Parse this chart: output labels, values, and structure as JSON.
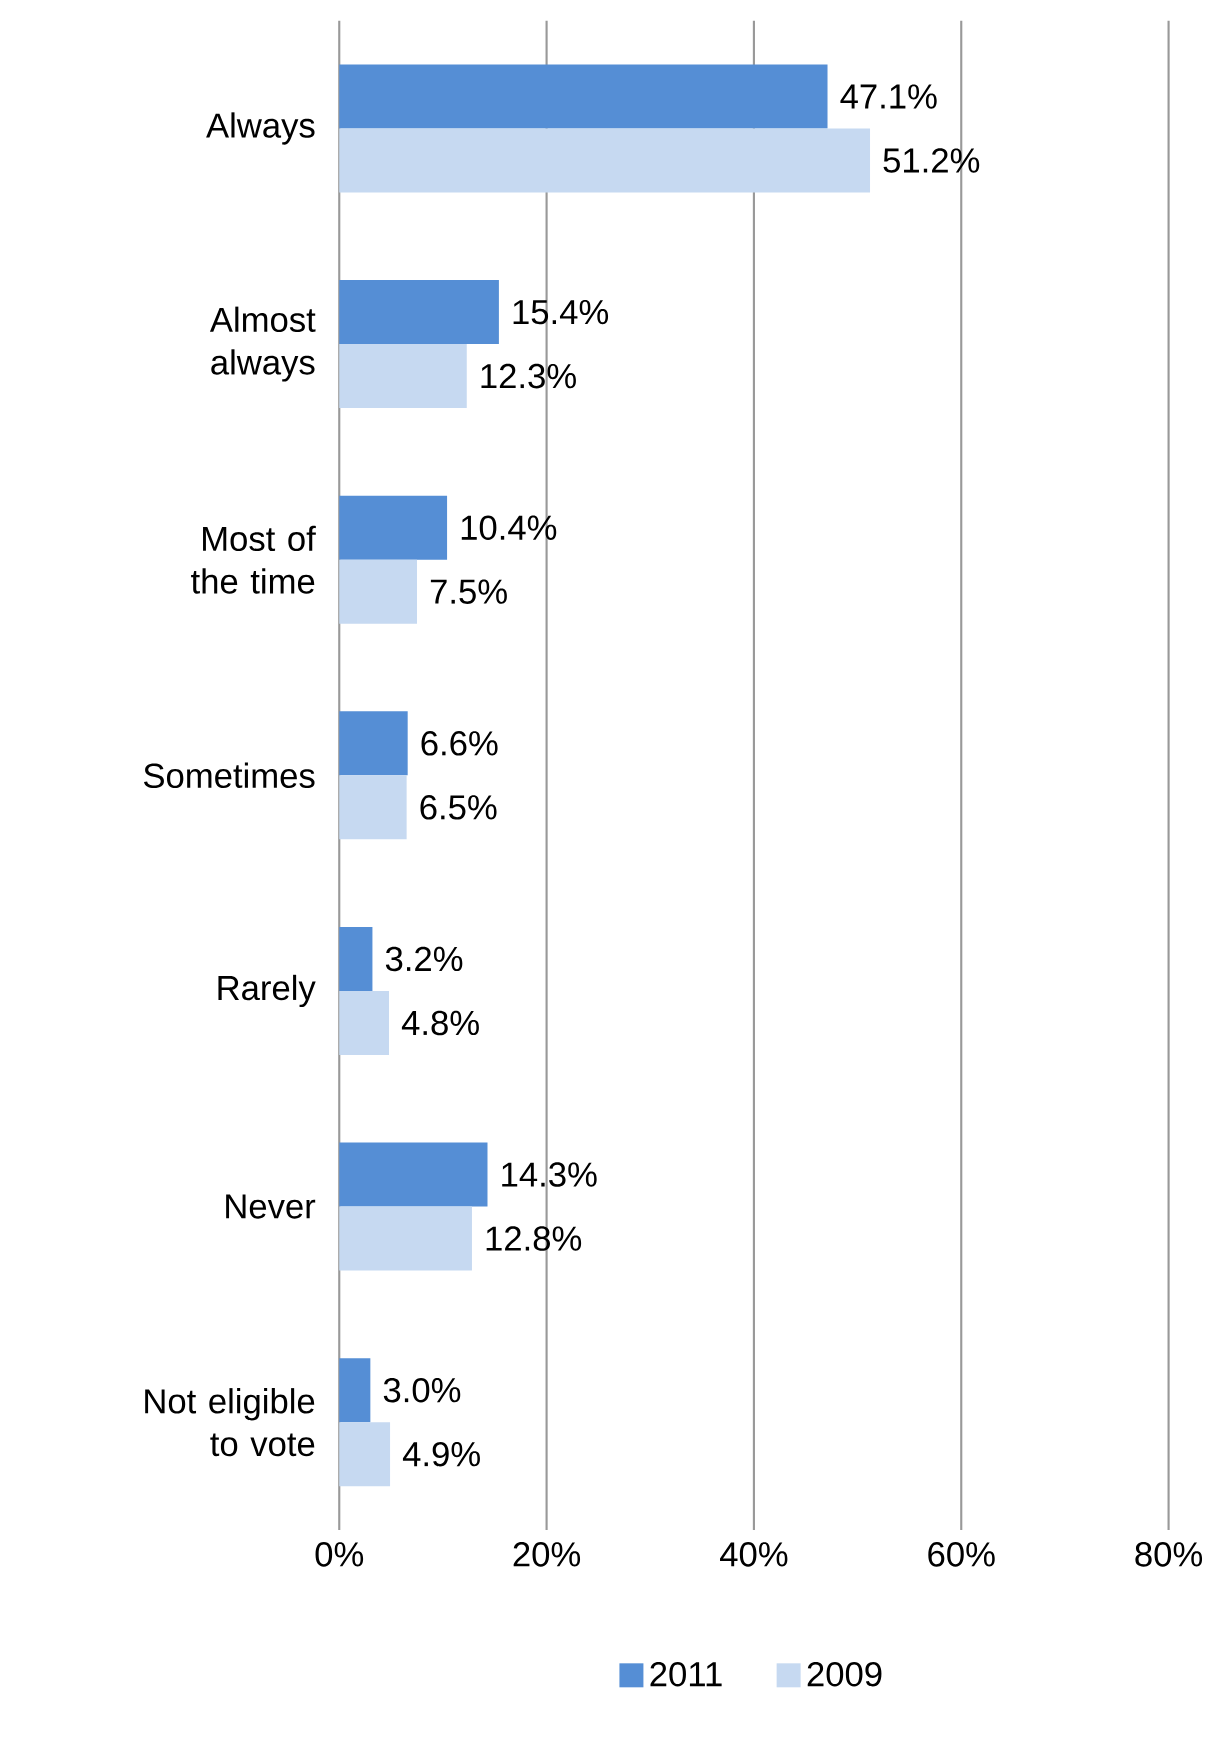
{
  "chart_data": {
    "type": "bar",
    "orientation": "horizontal",
    "categories": [
      "Always",
      "Almost always",
      "Most of the time",
      "Sometimes",
      "Rarely",
      "Never",
      "Not eligible to vote"
    ],
    "series": [
      {
        "name": "2011",
        "color": "#558ed5",
        "values": [
          47.1,
          15.4,
          10.4,
          6.6,
          3.2,
          14.3,
          3.0
        ],
        "value_labels": [
          "47.1%",
          "15.4%",
          "10.4%",
          "6.6%",
          "3.2%",
          "14.3%",
          "3.0%"
        ]
      },
      {
        "name": "2009",
        "color": "#c6d9f1",
        "values": [
          51.2,
          12.3,
          7.5,
          6.5,
          4.8,
          12.8,
          4.9
        ],
        "value_labels": [
          "51.2%",
          "12.3%",
          "7.5%",
          "6.5%",
          "4.8%",
          "12.8%",
          "4.9%"
        ]
      }
    ],
    "xlim": [
      0,
      80
    ],
    "xticks": [
      {
        "value": 0,
        "label": "0%"
      },
      {
        "value": 20,
        "label": "20%"
      },
      {
        "value": 40,
        "label": "40%"
      },
      {
        "value": 60,
        "label": "60%"
      },
      {
        "value": 80,
        "label": "80%"
      }
    ],
    "grid": "x",
    "legend": "bottom"
  }
}
